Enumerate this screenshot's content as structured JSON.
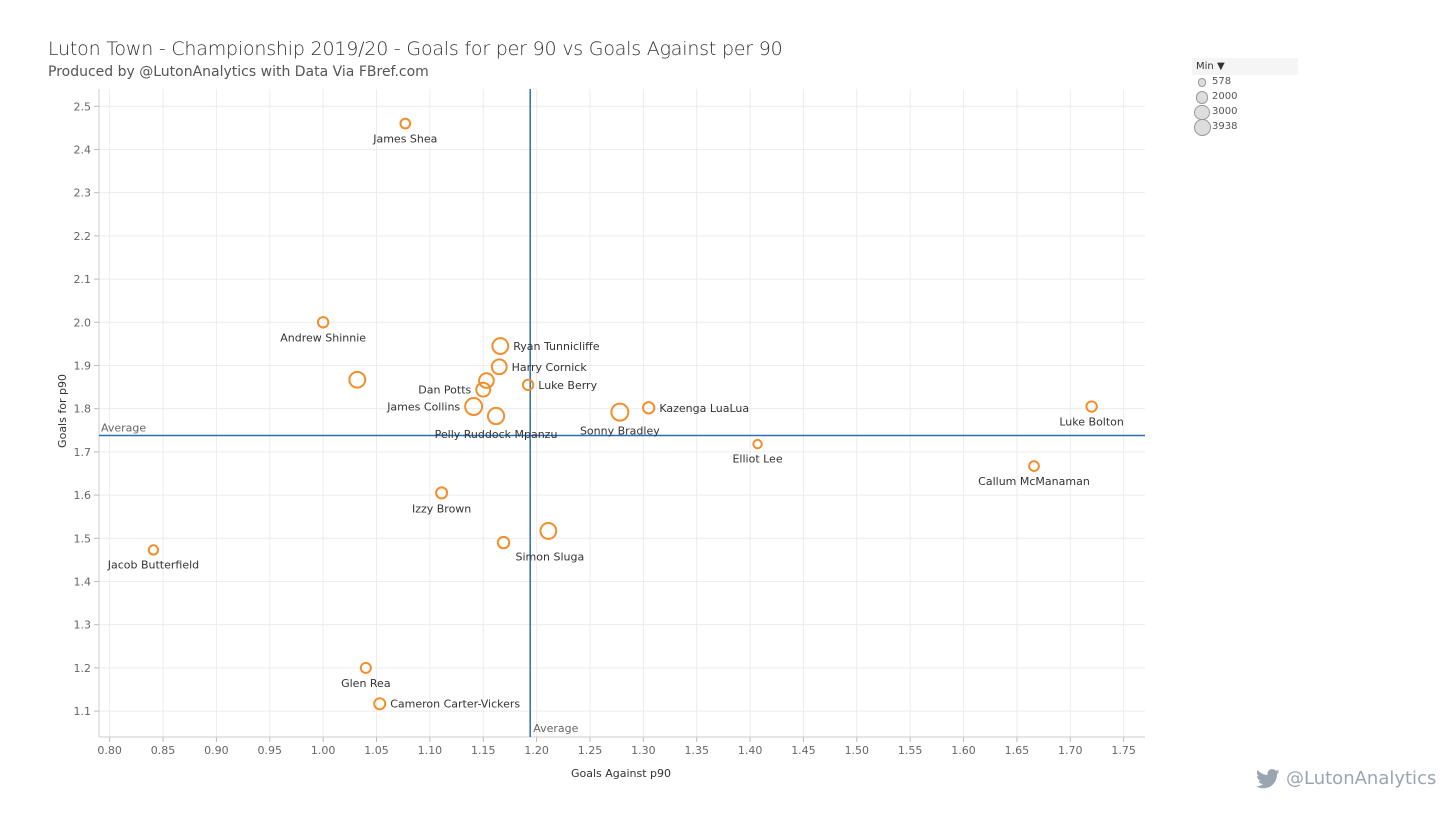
{
  "header": {
    "title": "Luton Town - Championship 2019/20 - Goals for per 90 vs Goals Against per 90",
    "subtitle": "Produced by @LutonAnalytics with Data Via FBref.com"
  },
  "legend": {
    "title": "Min",
    "arrow": "▼",
    "items": [
      {
        "label": "578",
        "minutes": 578
      },
      {
        "label": "2000",
        "minutes": 2000
      },
      {
        "label": "3000",
        "minutes": 3000
      },
      {
        "label": "3938",
        "minutes": 3938
      }
    ]
  },
  "branding": {
    "handle": "@LutonAnalytics",
    "icon": "twitter-bird-icon"
  },
  "colors": {
    "point": "#f28e2b",
    "refline": "#2c6fb0",
    "grid": "#ececec",
    "axis": "#666666"
  },
  "chart_data": {
    "type": "scatter",
    "title": "Luton Town - Championship 2019/20 - Goals for per 90 vs Goals Against per 90",
    "xlabel": "Goals Against p90",
    "ylabel": "Goals for p90",
    "xlim": [
      0.79,
      1.77
    ],
    "ylim": [
      1.04,
      2.54
    ],
    "xticks": [
      0.8,
      0.85,
      0.9,
      0.95,
      1.0,
      1.05,
      1.1,
      1.15,
      1.2,
      1.25,
      1.3,
      1.35,
      1.4,
      1.45,
      1.5,
      1.55,
      1.6,
      1.65,
      1.7,
      1.75
    ],
    "yticks": [
      1.1,
      1.2,
      1.3,
      1.4,
      1.5,
      1.6,
      1.7,
      1.8,
      1.9,
      2.0,
      2.1,
      2.2,
      2.3,
      2.4,
      2.5
    ],
    "grid": true,
    "size_variable": "Min",
    "reference_lines": [
      {
        "axis": "x",
        "value": 1.194,
        "label": "Average"
      },
      {
        "axis": "y",
        "value": 1.738,
        "label": "Average"
      }
    ],
    "points": [
      {
        "name": "James Shea",
        "x": 1.077,
        "y": 2.46,
        "minutes": 900,
        "label_pos": "below"
      },
      {
        "name": "Andrew Shinnie",
        "x": 1.0,
        "y": 2.0,
        "minutes": 1100,
        "label_pos": "below"
      },
      {
        "name": "",
        "x": 1.032,
        "y": 1.867,
        "minutes": 3300,
        "label_pos": "none"
      },
      {
        "name": "Ryan Tunnicliffe",
        "x": 1.166,
        "y": 1.945,
        "minutes": 3300,
        "label_pos": "right"
      },
      {
        "name": "Harry Cornick",
        "x": 1.165,
        "y": 1.897,
        "minutes": 2800,
        "label_pos": "right"
      },
      {
        "name": "",
        "x": 1.153,
        "y": 1.865,
        "minutes": 2700,
        "label_pos": "none"
      },
      {
        "name": "Dan Potts",
        "x": 1.15,
        "y": 1.844,
        "minutes": 2400,
        "label_pos": "left"
      },
      {
        "name": "Luke Berry",
        "x": 1.192,
        "y": 1.855,
        "minutes": 1100,
        "label_pos": "right"
      },
      {
        "name": "James Collins",
        "x": 1.141,
        "y": 1.805,
        "minutes": 3900,
        "label_pos": "left"
      },
      {
        "name": "Pelly Ruddock Mpanzu",
        "x": 1.162,
        "y": 1.783,
        "minutes": 3500,
        "label_pos": "below"
      },
      {
        "name": "Sonny Bradley",
        "x": 1.278,
        "y": 1.792,
        "minutes": 3900,
        "label_pos": "below"
      },
      {
        "name": "Kazenga LuaLua",
        "x": 1.305,
        "y": 1.802,
        "minutes": 1400,
        "label_pos": "right"
      },
      {
        "name": "Luke Bolton",
        "x": 1.72,
        "y": 1.805,
        "minutes": 1100,
        "label_pos": "below"
      },
      {
        "name": "Elliot Lee",
        "x": 1.407,
        "y": 1.718,
        "minutes": 578,
        "label_pos": "below"
      },
      {
        "name": "Callum McManaman",
        "x": 1.666,
        "y": 1.667,
        "minutes": 900,
        "label_pos": "below"
      },
      {
        "name": "Izzy Brown",
        "x": 1.111,
        "y": 1.605,
        "minutes": 1300,
        "label_pos": "below"
      },
      {
        "name": "",
        "x": 1.211,
        "y": 1.517,
        "minutes": 3300,
        "label_pos": "none"
      },
      {
        "name": "Simon Sluga",
        "x": 1.169,
        "y": 1.49,
        "minutes": 1400,
        "label_pos": "belowright"
      },
      {
        "name": "Jacob Butterfield",
        "x": 0.841,
        "y": 1.473,
        "minutes": 800,
        "label_pos": "below"
      },
      {
        "name": "Glen Rea",
        "x": 1.04,
        "y": 1.2,
        "minutes": 1000,
        "label_pos": "below"
      },
      {
        "name": "Cameron Carter-Vickers",
        "x": 1.053,
        "y": 1.117,
        "minutes": 1300,
        "label_pos": "right"
      }
    ]
  }
}
